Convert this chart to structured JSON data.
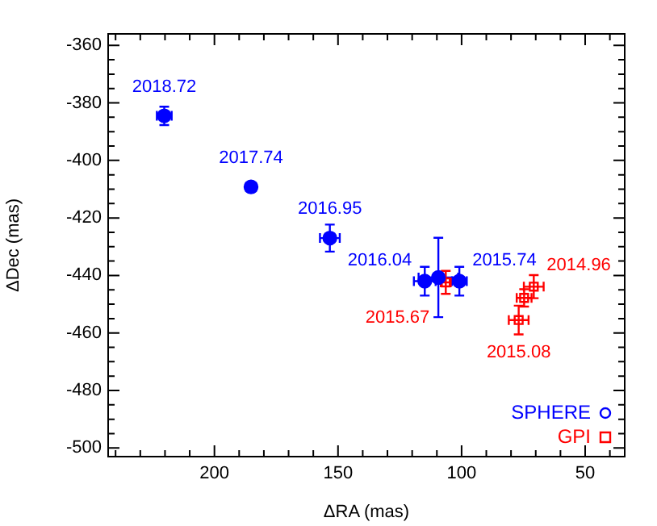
{
  "chart_data": {
    "type": "scatter",
    "xlabel": "ΔRA (mas)",
    "ylabel": "ΔDec (mas)",
    "xlim": [
      243,
      34
    ],
    "ylim": [
      -503,
      -356
    ],
    "xticks": [
      {
        "value": 240,
        "label": null
      },
      {
        "value": 230,
        "label": null
      },
      {
        "value": 220,
        "label": null
      },
      {
        "value": 210,
        "label": null
      },
      200,
      {
        "value": 190,
        "label": null
      },
      {
        "value": 180,
        "label": null
      },
      {
        "value": 170,
        "label": null
      },
      {
        "value": 160,
        "label": null
      },
      150,
      {
        "value": 140,
        "label": null
      },
      {
        "value": 130,
        "label": null
      },
      {
        "value": 120,
        "label": null
      },
      {
        "value": 110,
        "label": null
      },
      100,
      {
        "value": 90,
        "label": null
      },
      {
        "value": 80,
        "label": null
      },
      {
        "value": 70,
        "label": null
      },
      {
        "value": 60,
        "label": null
      },
      50,
      {
        "value": 40,
        "label": null
      }
    ],
    "yticks": [
      -500,
      {
        "value": -495,
        "label": null
      },
      {
        "value": -490,
        "label": null
      },
      {
        "value": -485,
        "label": null
      },
      -480,
      {
        "value": -475,
        "label": null
      },
      {
        "value": -470,
        "label": null
      },
      {
        "value": -465,
        "label": null
      },
      -460,
      {
        "value": -455,
        "label": null
      },
      {
        "value": -450,
        "label": null
      },
      {
        "value": -445,
        "label": null
      },
      -440,
      {
        "value": -435,
        "label": null
      },
      {
        "value": -430,
        "label": null
      },
      {
        "value": -425,
        "label": null
      },
      -420,
      {
        "value": -415,
        "label": null
      },
      {
        "value": -410,
        "label": null
      },
      {
        "value": -405,
        "label": null
      },
      -400,
      {
        "value": -395,
        "label": null
      },
      {
        "value": -390,
        "label": null
      },
      {
        "value": -385,
        "label": null
      },
      -380,
      {
        "value": -375,
        "label": null
      },
      {
        "value": -370,
        "label": null
      },
      {
        "value": -365,
        "label": null
      },
      -360
    ],
    "legend": "bottom right",
    "series": [
      {
        "name": "SPHERE",
        "color": "#0000ff",
        "x": [
          220.3,
          185.2,
          153.3,
          114.9,
          109.4,
          100.9
        ],
        "values": [
          -384.5,
          -409.2,
          -427,
          -442,
          -440.7,
          -442
        ],
        "errors": [
          3.2,
          1.5,
          4.7,
          5,
          13.8,
          5
        ],
        "xerrors": [
          3,
          2,
          4,
          4.4,
          8,
          3
        ]
      },
      {
        "name": "GPI",
        "color": "#ff0000",
        "marker": "square",
        "x": [
          106.4,
          70.8,
          74.7,
          76.9
        ],
        "values": [
          -442.4,
          -443.9,
          -447.8,
          -455.5
        ],
        "errors": [
          4,
          4,
          3,
          5
        ],
        "xerrors": [
          2,
          4,
          3,
          4
        ]
      }
    ],
    "annotations": [
      {
        "text": "2018.72",
        "x": 220.3,
        "y": -384.5
      },
      {
        "text": "2017.74",
        "x": 185.2,
        "y": -409.2
      },
      {
        "text": "2016.95",
        "x": 153.3,
        "y": -427
      },
      {
        "text": "2016.04",
        "x": 114.9,
        "y": -442
      },
      {
        "text": "2015.74",
        "x": 100.9,
        "y": -442
      },
      {
        "text": "2015.67",
        "x": 106.4,
        "y": -442.4
      },
      {
        "text": "2014.96",
        "x": 70.8,
        "y": -443.9
      },
      {
        "text": "2015.08",
        "x": 76.9,
        "y": -455.5
      }
    ]
  }
}
